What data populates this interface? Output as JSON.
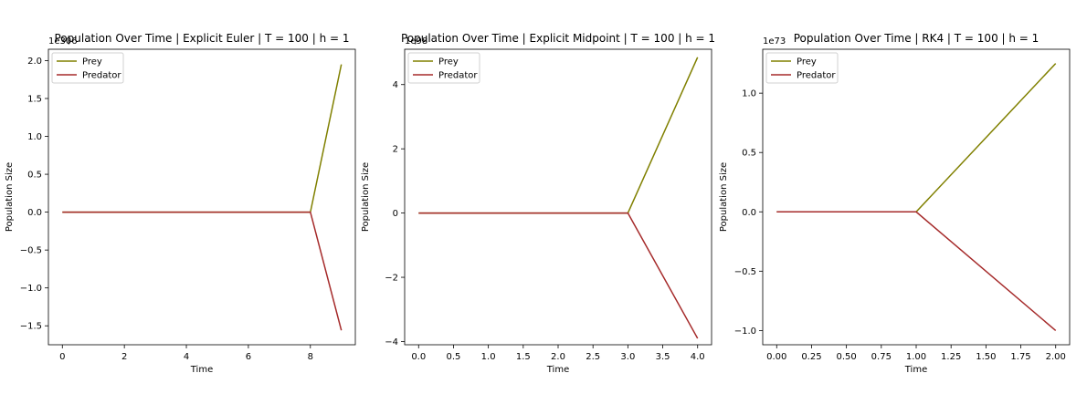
{
  "chart_data": [
    {
      "type": "line",
      "title": "Population Over Time | Explicit Euler | T = 100 | h = 1",
      "xlabel": "Time",
      "ylabel": "Population Size",
      "offset_text": "1e306",
      "xlim": [
        -0.45,
        9.45
      ],
      "ylim": [
        -1.75,
        2.15
      ],
      "xticks": [
        0,
        2,
        4,
        6,
        8
      ],
      "xtick_labels": [
        "0",
        "2",
        "4",
        "6",
        "8"
      ],
      "yticks": [
        -1.5,
        -1.0,
        -0.5,
        0.0,
        0.5,
        1.0,
        1.5,
        2.0
      ],
      "ytick_labels": [
        "−1.5",
        "−1.0",
        "−0.5",
        "0.0",
        "0.5",
        "1.0",
        "1.5",
        "2.0"
      ],
      "legend": "upper-left",
      "series": [
        {
          "name": "Prey",
          "color": "#808000",
          "x": [
            0,
            1,
            2,
            3,
            4,
            5,
            6,
            7,
            8,
            9
          ],
          "y": [
            0,
            0,
            0,
            0,
            0,
            0,
            0,
            0,
            0,
            1.95
          ]
        },
        {
          "name": "Predator",
          "color": "#a52a2a",
          "x": [
            0,
            1,
            2,
            3,
            4,
            5,
            6,
            7,
            8,
            9
          ],
          "y": [
            0,
            0,
            0,
            0,
            0,
            0,
            0,
            0,
            0,
            -1.56
          ]
        }
      ]
    },
    {
      "type": "line",
      "title": "Population Over Time | Explicit Midpoint | T = 100 | h = 1",
      "xlabel": "Time",
      "ylabel": "Population Size",
      "offset_text": "1e98",
      "xlim": [
        -0.2,
        4.2
      ],
      "ylim": [
        -4.1,
        5.1
      ],
      "xticks": [
        0,
        0.5,
        1.0,
        1.5,
        2.0,
        2.5,
        3.0,
        3.5,
        4.0
      ],
      "xtick_labels": [
        "0.0",
        "0.5",
        "1.0",
        "1.5",
        "2.0",
        "2.5",
        "3.0",
        "3.5",
        "4.0"
      ],
      "yticks": [
        -4,
        -2,
        0,
        2,
        4
      ],
      "ytick_labels": [
        "−4",
        "−2",
        "0",
        "2",
        "4"
      ],
      "legend": "upper-left",
      "series": [
        {
          "name": "Prey",
          "color": "#808000",
          "x": [
            0,
            1,
            2,
            3,
            4
          ],
          "y": [
            0,
            0,
            0,
            0,
            4.85
          ]
        },
        {
          "name": "Predator",
          "color": "#a52a2a",
          "x": [
            0,
            1,
            2,
            3,
            4
          ],
          "y": [
            0,
            0,
            0,
            0,
            -3.9
          ]
        }
      ]
    },
    {
      "type": "line",
      "title": "Population Over Time | RK4 | T = 100 | h = 1",
      "xlabel": "Time",
      "ylabel": "Population Size",
      "offset_text": "1e73",
      "xlim": [
        -0.1,
        2.1
      ],
      "ylim": [
        -1.12,
        1.37
      ],
      "xticks": [
        0,
        0.25,
        0.5,
        0.75,
        1.0,
        1.25,
        1.5,
        1.75,
        2.0
      ],
      "xtick_labels": [
        "0.00",
        "0.25",
        "0.50",
        "0.75",
        "1.00",
        "1.25",
        "1.50",
        "1.75",
        "2.00"
      ],
      "yticks": [
        -1.0,
        -0.5,
        0.0,
        0.5,
        1.0
      ],
      "ytick_labels": [
        "−1.0",
        "−0.5",
        "0.0",
        "0.5",
        "1.0"
      ],
      "legend": "upper-left",
      "series": [
        {
          "name": "Prey",
          "color": "#808000",
          "x": [
            0,
            1,
            2
          ],
          "y": [
            0,
            0,
            1.25
          ]
        },
        {
          "name": "Predator",
          "color": "#a52a2a",
          "x": [
            0,
            1,
            2
          ],
          "y": [
            0,
            0,
            -1.0
          ]
        }
      ]
    }
  ]
}
